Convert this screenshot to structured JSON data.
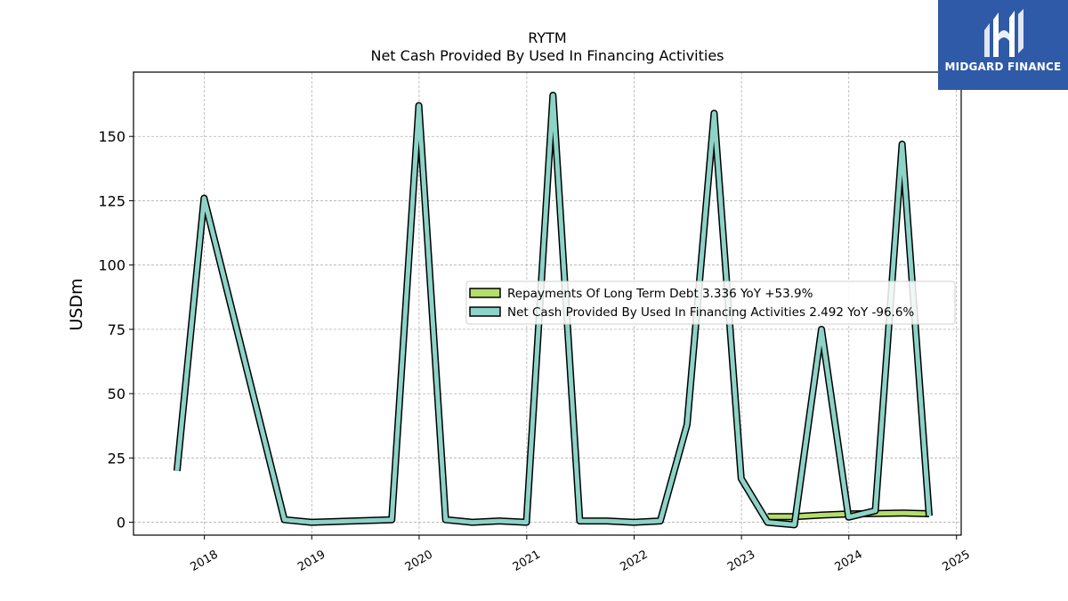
{
  "chart_data": {
    "type": "line",
    "title": "RYTM",
    "subtitle": "Net Cash Provided By Used In Financing Activities",
    "ylabel": "USDm",
    "ylim": [
      -5,
      175
    ],
    "yticks": [
      0,
      25,
      50,
      75,
      100,
      125,
      150
    ],
    "xlim": [
      "2017-05-05",
      "2025-01-17"
    ],
    "xticks": [
      "2018",
      "2019",
      "2020",
      "2021",
      "2022",
      "2023",
      "2024",
      "2025"
    ],
    "grid": true,
    "legend_position": "center-right",
    "series": [
      {
        "name": "Repayments Of Long Term Debt",
        "legend_label": "Repayments Of Long Term Debt  3.336 YoY +53.9%",
        "color": "#b3de69",
        "points": [
          [
            "2023-03-31",
            2.2
          ],
          [
            "2023-06-30",
            2.2
          ],
          [
            "2023-09-30",
            2.8
          ],
          [
            "2023-12-31",
            3.2
          ],
          [
            "2024-03-31",
            3.4
          ],
          [
            "2024-06-30",
            3.6
          ],
          [
            "2024-09-30",
            3.3
          ]
        ]
      },
      {
        "name": "Net Cash Provided By Used In Financing Activities",
        "legend_label": "Net Cash Provided By Used In Financing Activities  2.492 YoY -96.6%",
        "color": "#8dd3c7",
        "points": [
          [
            "2017-09-30",
            20
          ],
          [
            "2017-12-31",
            126
          ],
          [
            "2018-09-30",
            1
          ],
          [
            "2018-12-31",
            0
          ],
          [
            "2019-09-30",
            1
          ],
          [
            "2019-12-31",
            162
          ],
          [
            "2020-03-31",
            1
          ],
          [
            "2020-06-30",
            0
          ],
          [
            "2020-09-30",
            0.5
          ],
          [
            "2020-12-31",
            0
          ],
          [
            "2021-03-31",
            166
          ],
          [
            "2021-06-30",
            0.5
          ],
          [
            "2021-09-30",
            0.5
          ],
          [
            "2021-12-31",
            0
          ],
          [
            "2022-03-31",
            0.5
          ],
          [
            "2022-06-30",
            38
          ],
          [
            "2022-09-30",
            159
          ],
          [
            "2022-12-31",
            17
          ],
          [
            "2023-03-31",
            0
          ],
          [
            "2023-06-30",
            -1
          ],
          [
            "2023-09-30",
            75
          ],
          [
            "2023-12-31",
            2
          ],
          [
            "2024-03-31",
            4.5
          ],
          [
            "2024-06-30",
            147
          ],
          [
            "2024-09-30",
            2.5
          ]
        ]
      }
    ]
  },
  "logo": {
    "text": "MIDGARD FINANCE"
  }
}
